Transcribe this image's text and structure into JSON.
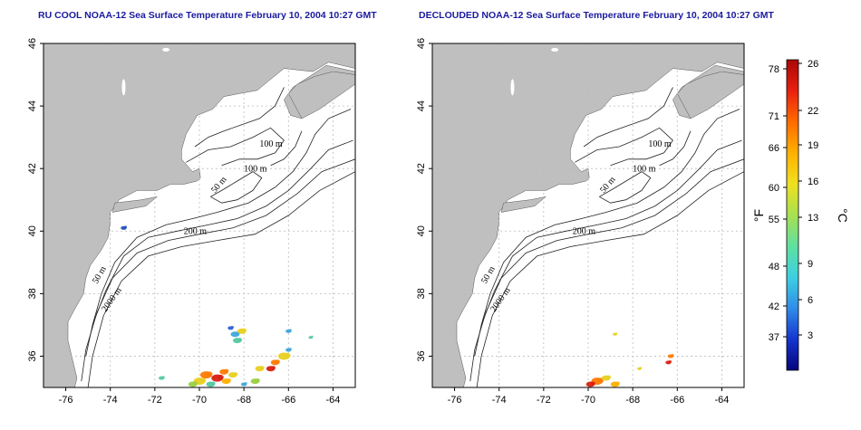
{
  "panels": [
    {
      "title": "RU COOL NOAA-12 Sea Surface Temperature February 10, 2004 10:27 GMT",
      "patches": [
        {
          "lon": -68.4,
          "lat": 36.7,
          "color": "#3da8e0",
          "r": 3
        },
        {
          "lon": -68.1,
          "lat": 36.8,
          "color": "#e8d020",
          "r": 3
        },
        {
          "lon": -68.6,
          "lat": 36.9,
          "color": "#2a60d0",
          "r": 2
        },
        {
          "lon": -68.3,
          "lat": 36.5,
          "color": "#56c8a0",
          "r": 3
        },
        {
          "lon": -66.2,
          "lat": 36.0,
          "color": "#e8d020",
          "r": 4
        },
        {
          "lon": -66.6,
          "lat": 35.8,
          "color": "#ff7a00",
          "r": 3
        },
        {
          "lon": -66.0,
          "lat": 36.2,
          "color": "#3da8e0",
          "r": 2
        },
        {
          "lon": -66.8,
          "lat": 35.6,
          "color": "#d82010",
          "r": 3
        },
        {
          "lon": -67.3,
          "lat": 35.6,
          "color": "#e8d020",
          "r": 3
        },
        {
          "lon": -67.5,
          "lat": 35.2,
          "color": "#9ad040",
          "r": 3
        },
        {
          "lon": -69.7,
          "lat": 35.4,
          "color": "#ff7a00",
          "r": 4
        },
        {
          "lon": -69.2,
          "lat": 35.3,
          "color": "#d82010",
          "r": 4
        },
        {
          "lon": -70.0,
          "lat": 35.2,
          "color": "#e8d020",
          "r": 4
        },
        {
          "lon": -68.8,
          "lat": 35.2,
          "color": "#ffb000",
          "r": 3
        },
        {
          "lon": -68.5,
          "lat": 35.4,
          "color": "#e8d020",
          "r": 3
        },
        {
          "lon": -70.3,
          "lat": 35.1,
          "color": "#9ad040",
          "r": 3
        },
        {
          "lon": -69.5,
          "lat": 35.1,
          "color": "#56c8a0",
          "r": 3
        },
        {
          "lon": -68.0,
          "lat": 35.1,
          "color": "#3da8e0",
          "r": 2
        },
        {
          "lon": -71.7,
          "lat": 35.3,
          "color": "#56c8a0",
          "r": 2
        },
        {
          "lon": -68.9,
          "lat": 35.5,
          "color": "#ff7a00",
          "r": 3
        },
        {
          "lon": -66.0,
          "lat": 36.8,
          "color": "#3da8e0",
          "r": 2
        },
        {
          "lon": -65.0,
          "lat": 36.6,
          "color": "#56c8a0",
          "r": 1.5
        },
        {
          "lon": -73.4,
          "lat": 40.1,
          "color": "#2050c0",
          "r": 2
        }
      ]
    },
    {
      "title": "DECLOUDED NOAA-12 Sea Surface Temperature February 10, 2004 10:27 GMT",
      "patches": [
        {
          "lon": -69.6,
          "lat": 35.2,
          "color": "#ff7a00",
          "r": 4
        },
        {
          "lon": -69.2,
          "lat": 35.3,
          "color": "#e8d020",
          "r": 3
        },
        {
          "lon": -69.9,
          "lat": 35.1,
          "color": "#d82010",
          "r": 3
        },
        {
          "lon": -68.8,
          "lat": 35.1,
          "color": "#ffb000",
          "r": 3
        },
        {
          "lon": -66.4,
          "lat": 35.8,
          "color": "#d82010",
          "r": 2
        },
        {
          "lon": -66.3,
          "lat": 36.0,
          "color": "#ff7a00",
          "r": 2
        },
        {
          "lon": -67.7,
          "lat": 35.6,
          "color": "#e8d020",
          "r": 1.5
        },
        {
          "lon": -68.8,
          "lat": 36.7,
          "color": "#e8d020",
          "r": 1.5
        }
      ]
    }
  ],
  "axes": {
    "xticks": [
      -76,
      -74,
      -72,
      -70,
      -68,
      -66,
      -64
    ],
    "yticks": [
      36,
      38,
      40,
      42,
      44,
      46
    ],
    "lon_range": [
      -77,
      -63
    ],
    "lat_range": [
      35,
      46
    ]
  },
  "contour_labels": [
    {
      "text": "100 m",
      "lon": -67.3,
      "lat": 42.7
    },
    {
      "text": "100 m",
      "lon": -68.0,
      "lat": 41.9
    },
    {
      "text": "50 m",
      "lon": -69.3,
      "lat": 41.2
    },
    {
      "text": "200 m",
      "lon": -70.7,
      "lat": 39.9
    },
    {
      "text": "50 m",
      "lon": -74.6,
      "lat": 38.3
    },
    {
      "text": "2000 m",
      "lon": -74.2,
      "lat": 37.4
    }
  ],
  "colorbar": {
    "fahrenheit_label": "°F",
    "celsius_label": "°C",
    "fahrenheit_ticks": [
      "78",
      "71",
      "66",
      "60",
      "55",
      "48",
      "42",
      "37"
    ],
    "celsius_ticks": [
      "26",
      "22",
      "19",
      "16",
      "13",
      "9",
      "6",
      "3"
    ],
    "colors": [
      "#05057a",
      "#1535d0",
      "#2f8de8",
      "#3dd0e0",
      "#5fe0a0",
      "#a8e050",
      "#f0e020",
      "#ffb000",
      "#ff6a00",
      "#e82010",
      "#a80808"
    ]
  }
}
